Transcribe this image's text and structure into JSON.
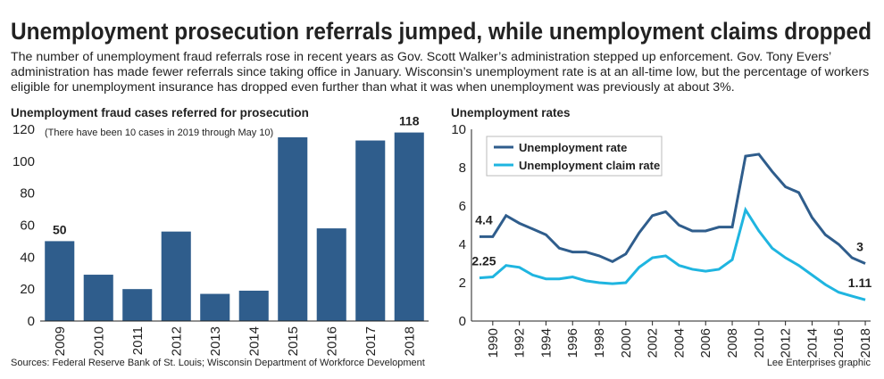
{
  "header": {
    "title": "Unemployment prosecution referrals jumped, while unemployment claims dropped",
    "subtitle": "The number of unemployment fraud referrals rose in recent years as Gov. Scott Walker’s administration stepped up enforcement. Gov. Tony Evers’ administration has made fewer referrals since taking office in January. Wisconsin’s unemployment rate is at an all-time low, but the percentage of workers eligible for unemployment insurance has dropped even further than what it was when unemployment was previously at about 3%."
  },
  "chart_data": [
    {
      "type": "bar",
      "title": "Unemployment fraud cases referred for prosecution",
      "note": "(There have been 10 cases in 2019 through May 10)",
      "categories": [
        "2009",
        "2010",
        "2011",
        "2012",
        "2013",
        "2014",
        "2015",
        "2016",
        "2017",
        "2018"
      ],
      "values": [
        50,
        29,
        20,
        56,
        17,
        19,
        115,
        58,
        113,
        118
      ],
      "value_labels": [
        "50",
        null,
        null,
        null,
        null,
        null,
        null,
        null,
        null,
        "118"
      ],
      "color": "#2f5d8c",
      "ylim": [
        0,
        120
      ],
      "yticks": [
        0,
        20,
        40,
        60,
        80,
        100,
        120
      ],
      "grid": false
    },
    {
      "type": "line",
      "title": "Unemployment rates",
      "x": [
        1989,
        1990,
        1991,
        1992,
        1993,
        1994,
        1995,
        1996,
        1997,
        1998,
        1999,
        2000,
        2001,
        2002,
        2003,
        2004,
        2005,
        2006,
        2007,
        2008,
        2009,
        2010,
        2011,
        2012,
        2013,
        2014,
        2015,
        2016,
        2017,
        2018
      ],
      "series": [
        {
          "name": "Unemployment rate",
          "color": "#2f5d8c",
          "values": [
            4.4,
            4.4,
            5.5,
            5.1,
            4.8,
            4.5,
            3.8,
            3.6,
            3.6,
            3.4,
            3.1,
            3.5,
            4.6,
            5.5,
            5.7,
            5.0,
            4.7,
            4.7,
            4.9,
            4.9,
            8.6,
            8.7,
            7.8,
            7.0,
            6.7,
            5.4,
            4.5,
            4.0,
            3.3,
            3
          ],
          "value_labels": [
            "4.4",
            null,
            null,
            null,
            null,
            null,
            null,
            null,
            null,
            null,
            null,
            null,
            null,
            null,
            null,
            null,
            null,
            null,
            null,
            null,
            null,
            null,
            null,
            null,
            null,
            null,
            null,
            null,
            null,
            "3"
          ]
        },
        {
          "name": "Unemployment claim rate",
          "color": "#1fb5e0",
          "values": [
            2.25,
            2.3,
            2.9,
            2.8,
            2.4,
            2.2,
            2.2,
            2.3,
            2.1,
            2.0,
            1.95,
            2.0,
            2.8,
            3.3,
            3.4,
            2.9,
            2.7,
            2.6,
            2.7,
            3.2,
            5.8,
            4.7,
            3.8,
            3.3,
            2.9,
            2.4,
            1.9,
            1.5,
            1.3,
            1.11
          ],
          "value_labels": [
            "2.25",
            null,
            null,
            null,
            null,
            null,
            null,
            null,
            null,
            null,
            null,
            null,
            null,
            null,
            null,
            null,
            null,
            null,
            null,
            null,
            null,
            null,
            null,
            null,
            null,
            null,
            null,
            null,
            null,
            "1.11"
          ]
        }
      ],
      "xlim": [
        1988.4,
        2018.4
      ],
      "xticks": [
        1990,
        1992,
        1994,
        1996,
        1998,
        2000,
        2002,
        2004,
        2006,
        2008,
        2010,
        2012,
        2014,
        2016,
        2018
      ],
      "ylim": [
        0,
        10
      ],
      "yticks": [
        0,
        2,
        4,
        6,
        8,
        10
      ],
      "legend": "upper-left"
    }
  ],
  "footer": {
    "source": "Sources: Federal Reserve Bank of St. Louis; Wisconsin Department of Workforce Development",
    "credit": "Lee Enterprises graphic"
  }
}
